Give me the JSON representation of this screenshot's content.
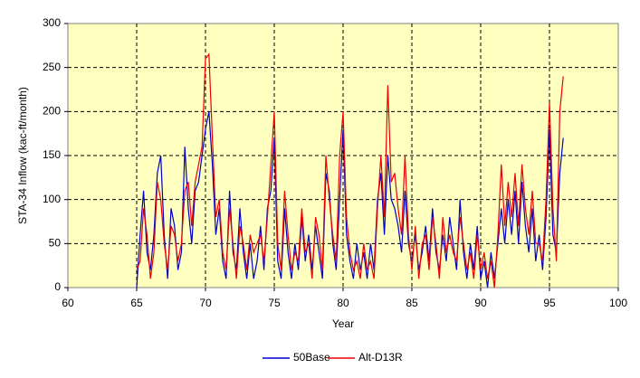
{
  "chart_data": {
    "type": "line",
    "xlabel": "Year",
    "ylabel": "STA-34 Inflow (kac-ft/month)",
    "x": [
      65,
      65.25,
      65.5,
      65.75,
      66,
      66.25,
      66.5,
      66.75,
      67,
      67.25,
      67.5,
      67.75,
      68,
      68.25,
      68.5,
      68.75,
      69,
      69.25,
      69.5,
      69.75,
      70,
      70.25,
      70.5,
      70.75,
      71,
      71.25,
      71.5,
      71.75,
      72,
      72.25,
      72.5,
      72.75,
      73,
      73.25,
      73.5,
      73.75,
      74,
      74.25,
      74.5,
      74.75,
      75,
      75.25,
      75.5,
      75.75,
      76,
      76.25,
      76.5,
      76.75,
      77,
      77.25,
      77.5,
      77.75,
      78,
      78.25,
      78.5,
      78.75,
      79,
      79.25,
      79.5,
      79.75,
      80,
      80.25,
      80.5,
      80.75,
      81,
      81.25,
      81.5,
      81.75,
      82,
      82.25,
      82.5,
      82.75,
      83,
      83.25,
      83.5,
      83.75,
      84,
      84.25,
      84.5,
      84.75,
      85,
      85.25,
      85.5,
      85.75,
      86,
      86.25,
      86.5,
      86.75,
      87,
      87.25,
      87.5,
      87.75,
      88,
      88.25,
      88.5,
      88.75,
      89,
      89.25,
      89.5,
      89.75,
      90,
      90.25,
      90.5,
      90.75,
      91,
      91.25,
      91.5,
      91.75,
      92,
      92.25,
      92.5,
      92.75,
      93,
      93.25,
      93.5,
      93.75,
      94,
      94.25,
      94.5,
      94.75,
      95,
      95.25,
      95.5,
      95.75,
      96
    ],
    "series": [
      {
        "name": "50Base",
        "color": "#0000cc",
        "values": [
          0,
          60,
          110,
          40,
          20,
          60,
          130,
          150,
          60,
          10,
          90,
          70,
          20,
          40,
          160,
          90,
          50,
          110,
          120,
          150,
          180,
          200,
          140,
          60,
          90,
          30,
          10,
          110,
          40,
          20,
          90,
          40,
          10,
          50,
          10,
          30,
          70,
          20,
          90,
          110,
          170,
          30,
          10,
          90,
          40,
          10,
          50,
          20,
          80,
          30,
          60,
          20,
          70,
          40,
          10,
          130,
          110,
          50,
          20,
          100,
          180,
          60,
          30,
          10,
          50,
          20,
          40,
          10,
          50,
          20,
          100,
          130,
          60,
          150,
          100,
          90,
          70,
          40,
          110,
          50,
          30,
          60,
          20,
          40,
          70,
          30,
          90,
          40,
          20,
          60,
          30,
          80,
          50,
          20,
          100,
          40,
          10,
          50,
          20,
          70,
          10,
          30,
          0,
          40,
          10,
          50,
          90,
          50,
          100,
          60,
          110,
          50,
          120,
          70,
          40,
          90,
          30,
          60,
          20,
          80,
          180,
          60,
          40,
          130,
          170
        ]
      },
      {
        "name": "Alt-D13R",
        "color": "#ee0000",
        "values": [
          20,
          30,
          90,
          60,
          10,
          40,
          120,
          100,
          50,
          20,
          70,
          60,
          30,
          50,
          110,
          120,
          70,
          120,
          140,
          160,
          260,
          265,
          170,
          80,
          100,
          40,
          20,
          90,
          50,
          10,
          70,
          50,
          20,
          60,
          40,
          50,
          60,
          30,
          80,
          140,
          200,
          50,
          20,
          110,
          60,
          20,
          40,
          30,
          90,
          40,
          50,
          10,
          80,
          60,
          20,
          150,
          100,
          60,
          30,
          150,
          200,
          80,
          40,
          20,
          30,
          10,
          50,
          20,
          30,
          10,
          90,
          150,
          80,
          230,
          120,
          130,
          90,
          60,
          150,
          60,
          20,
          70,
          10,
          50,
          60,
          20,
          80,
          50,
          10,
          80,
          40,
          60,
          40,
          30,
          80,
          50,
          20,
          40,
          10,
          60,
          20,
          40,
          10,
          30,
          0,
          60,
          140,
          70,
          120,
          80,
          130,
          70,
          140,
          90,
          60,
          110,
          50,
          50,
          30,
          100,
          210,
          90,
          30,
          200,
          240
        ]
      }
    ],
    "xlim": [
      60,
      100
    ],
    "xticks": [
      60,
      65,
      70,
      75,
      80,
      85,
      90,
      95,
      100
    ],
    "ylim": [
      0,
      300
    ],
    "yticks": [
      0,
      50,
      100,
      150,
      200,
      250,
      300
    ],
    "grid": true,
    "legend": "bottom"
  }
}
